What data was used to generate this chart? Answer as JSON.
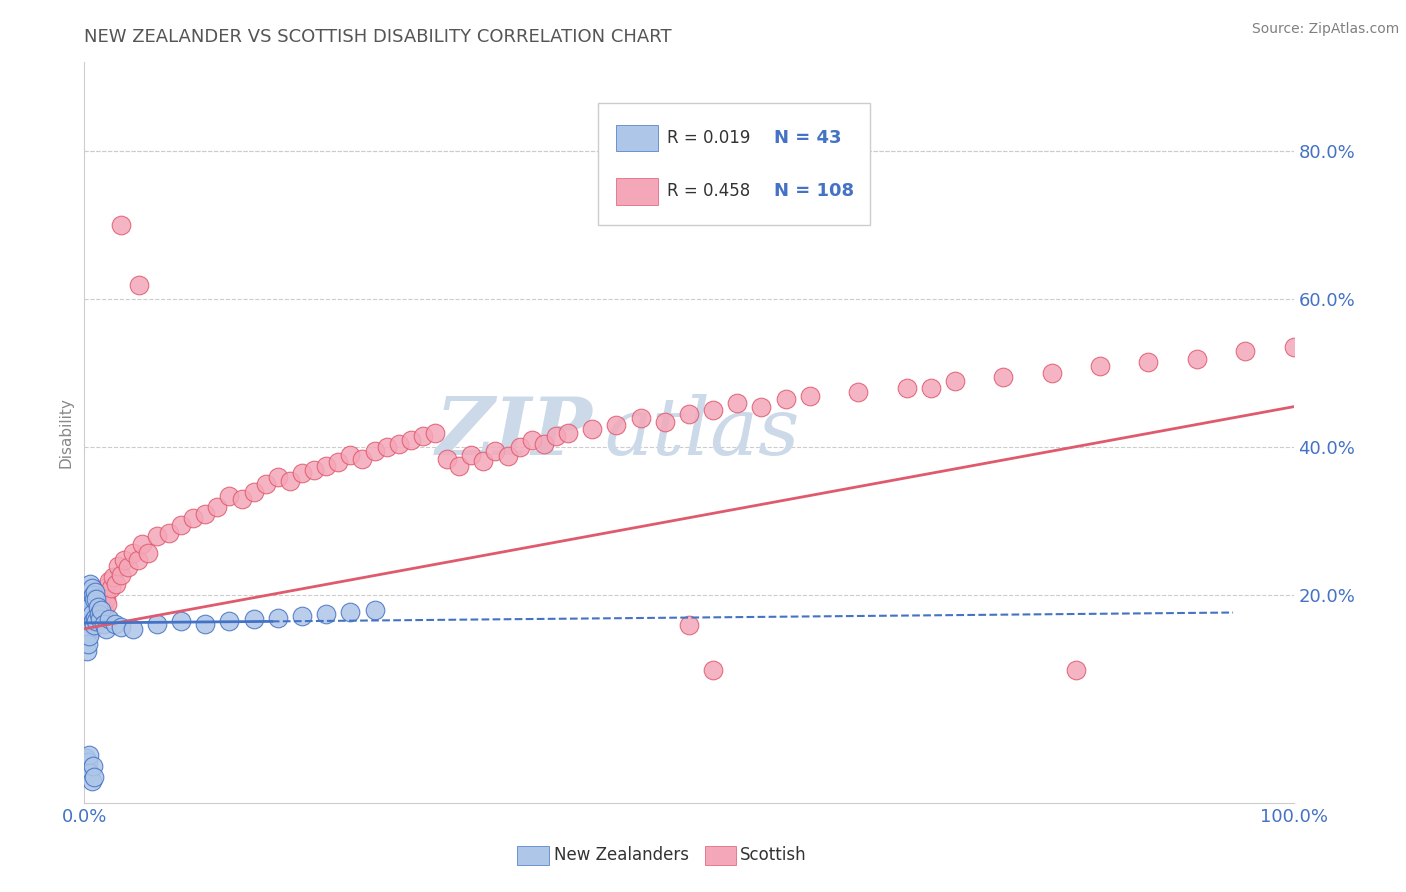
{
  "title": "NEW ZEALANDER VS SCOTTISH DISABILITY CORRELATION CHART",
  "source_text": "Source: ZipAtlas.com",
  "ylabel": "Disability",
  "xlim": [
    0.0,
    1.0
  ],
  "ylim": [
    -0.08,
    0.92
  ],
  "x_ticks": [
    0.0,
    0.2,
    0.4,
    0.6,
    0.8,
    1.0
  ],
  "x_tick_labels": [
    "0.0%",
    "",
    "",
    "",
    "",
    "100.0%"
  ],
  "y_ticks": [
    0.2,
    0.4,
    0.6,
    0.8
  ],
  "y_tick_labels": [
    "20.0%",
    "40.0%",
    "60.0%",
    "80.0%"
  ],
  "legend_entries": [
    {
      "color": "#aec6e8",
      "edge": "#5b9bd5",
      "r": "0.019",
      "n": "43",
      "label": "New Zealanders"
    },
    {
      "color": "#f4a7b9",
      "edge": "#e05a6e",
      "r": "0.458",
      "n": "108",
      "label": "Scottish"
    }
  ],
  "nz_scatter": {
    "x": [
      0.001,
      0.001,
      0.002,
      0.002,
      0.002,
      0.003,
      0.003,
      0.003,
      0.004,
      0.004,
      0.004,
      0.005,
      0.005,
      0.005,
      0.006,
      0.006,
      0.006,
      0.007,
      0.007,
      0.008,
      0.008,
      0.009,
      0.009,
      0.01,
      0.01,
      0.011,
      0.011,
      0.012,
      0.013,
      0.014,
      0.015,
      0.016,
      0.018,
      0.02,
      0.022,
      0.025,
      0.028,
      0.03,
      0.035,
      0.04,
      0.05,
      0.1,
      0.15
    ],
    "y": [
      0.17,
      0.14,
      0.18,
      0.15,
      0.12,
      0.19,
      0.16,
      0.13,
      0.2,
      0.17,
      0.14,
      0.21,
      0.18,
      0.15,
      0.2,
      0.17,
      0.14,
      0.19,
      0.16,
      0.18,
      0.15,
      0.2,
      0.17,
      0.19,
      0.16,
      0.18,
      0.15,
      0.17,
      0.16,
      0.18,
      0.17,
      0.16,
      0.15,
      0.17,
      0.16,
      0.16,
      0.17,
      0.16,
      0.15,
      0.16,
      0.15,
      0.16,
      0.17
    ]
  },
  "sc_scatter": {
    "x": [
      0.003,
      0.004,
      0.005,
      0.006,
      0.007,
      0.008,
      0.009,
      0.01,
      0.011,
      0.012,
      0.013,
      0.014,
      0.015,
      0.016,
      0.017,
      0.018,
      0.019,
      0.02,
      0.022,
      0.024,
      0.026,
      0.028,
      0.03,
      0.033,
      0.036,
      0.04,
      0.044,
      0.048,
      0.053,
      0.058,
      0.064,
      0.07,
      0.076,
      0.082,
      0.088,
      0.095,
      0.102,
      0.11,
      0.118,
      0.126,
      0.135,
      0.143,
      0.152,
      0.162,
      0.171,
      0.18,
      0.19,
      0.2,
      0.21,
      0.22,
      0.23,
      0.24,
      0.25,
      0.26,
      0.27,
      0.28,
      0.29,
      0.3,
      0.31,
      0.32,
      0.33,
      0.34,
      0.35,
      0.36,
      0.37,
      0.38,
      0.39,
      0.4,
      0.415,
      0.43,
      0.445,
      0.46,
      0.475,
      0.49,
      0.505,
      0.52,
      0.54,
      0.56,
      0.58,
      0.6,
      0.62,
      0.64,
      0.66,
      0.68,
      0.7,
      0.72,
      0.74,
      0.76,
      0.78,
      0.8,
      0.82,
      0.84,
      0.86,
      0.88,
      0.9,
      0.92,
      0.94,
      0.96,
      0.98,
      0.99,
      0.995,
      0.997,
      0.998,
      0.999,
      1.0,
      0.75,
      0.85,
      0.95
    ],
    "y": [
      0.15,
      0.16,
      0.17,
      0.15,
      0.18,
      0.16,
      0.17,
      0.19,
      0.16,
      0.18,
      0.17,
      0.2,
      0.19,
      0.18,
      0.21,
      0.2,
      0.19,
      0.22,
      0.21,
      0.23,
      0.22,
      0.24,
      0.23,
      0.25,
      0.24,
      0.26,
      0.25,
      0.27,
      0.26,
      0.28,
      0.27,
      0.29,
      0.28,
      0.3,
      0.29,
      0.31,
      0.3,
      0.32,
      0.31,
      0.33,
      0.32,
      0.34,
      0.33,
      0.35,
      0.34,
      0.36,
      0.35,
      0.37,
      0.36,
      0.38,
      0.37,
      0.39,
      0.38,
      0.4,
      0.39,
      0.41,
      0.4,
      0.36,
      0.35,
      0.37,
      0.36,
      0.38,
      0.37,
      0.39,
      0.38,
      0.4,
      0.41,
      0.39,
      0.42,
      0.41,
      0.43,
      0.42,
      0.44,
      0.43,
      0.45,
      0.44,
      0.46,
      0.45,
      0.47,
      0.46,
      0.48,
      0.47,
      0.49,
      0.48,
      0.5,
      0.49,
      0.51,
      0.5,
      0.52,
      0.51,
      0.52,
      0.53,
      0.54,
      0.53,
      0.55,
      0.54,
      0.56,
      0.55,
      0.57,
      0.58,
      0.59,
      0.6,
      0.61,
      0.62,
      0.63,
      0.5,
      0.51,
      0.52
    ]
  },
  "sc_extra_outliers": {
    "x": [
      0.03,
      0.045,
      0.5,
      0.52,
      0.82,
      0.7,
      0.68
    ],
    "y": [
      0.7,
      0.62,
      0.16,
      0.1,
      0.1,
      0.47,
      0.48
    ]
  },
  "nz_line_color": "#4472c4",
  "sc_line_color": "#e05a6e",
  "nz_dot_color": "#aec6e8",
  "sc_dot_color": "#f4a7b9",
  "background_color": "#ffffff",
  "grid_color": "#cccccc",
  "title_color": "#555555",
  "source_color": "#808080",
  "axis_label_color": "#4472c4",
  "r_n_label_color": "#4472c4",
  "watermark_zip": "ZIP",
  "watermark_atlas": "atlas",
  "watermark_color": "#ccd9e8"
}
